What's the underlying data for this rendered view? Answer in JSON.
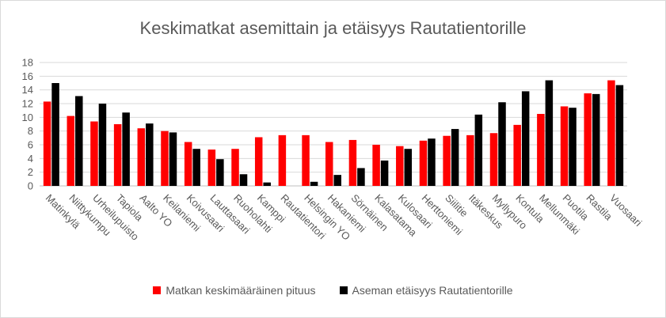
{
  "chart_data": {
    "type": "bar",
    "title": "Keskimatkat asemittain ja etäisyys Rautatientorille",
    "xlabel": "",
    "ylabel": "",
    "ylim": [
      0,
      18
    ],
    "yticks": [
      0,
      2,
      4,
      6,
      8,
      10,
      12,
      14,
      16,
      18
    ],
    "grid": true,
    "legend_position": "bottom",
    "categories": [
      "Matinkylä",
      "Niittykumpu",
      "Urheilupuisto",
      "Tapiola",
      "Aalto YO",
      "Keilaniemi",
      "Koivusaari",
      "Lauttasaari",
      "Ruoholahti",
      "Kamppi",
      "Rautatientori",
      "Helsingin YO",
      "Hakaniemi",
      "Sörnäinen",
      "Kalasatama",
      "Kulosaari",
      "Herttoniemi",
      "Siilitie",
      "Itäkeskus",
      "Myllypuro",
      "Kontula",
      "Mellunmäki",
      "Puotila",
      "Rastila",
      "Vuosaari"
    ],
    "series": [
      {
        "name": "Matkan keskimääräinen pituus",
        "color": "#ff0000",
        "values": [
          12.3,
          10.2,
          9.4,
          9.0,
          8.4,
          8.0,
          6.4,
          5.3,
          5.4,
          7.1,
          7.4,
          7.4,
          6.4,
          6.7,
          6.0,
          5.8,
          6.6,
          7.3,
          7.4,
          7.7,
          8.9,
          10.5,
          11.6,
          13.5,
          15.4
        ]
      },
      {
        "name": "Aseman etäisyys Rautatientorille",
        "color": "#000000",
        "values": [
          15.0,
          13.1,
          12.0,
          10.7,
          9.1,
          7.8,
          5.4,
          3.9,
          1.7,
          0.5,
          0.0,
          0.6,
          1.6,
          2.6,
          3.7,
          5.4,
          6.9,
          8.3,
          10.4,
          12.2,
          13.8,
          15.4,
          11.4,
          13.4,
          14.7
        ]
      }
    ]
  }
}
